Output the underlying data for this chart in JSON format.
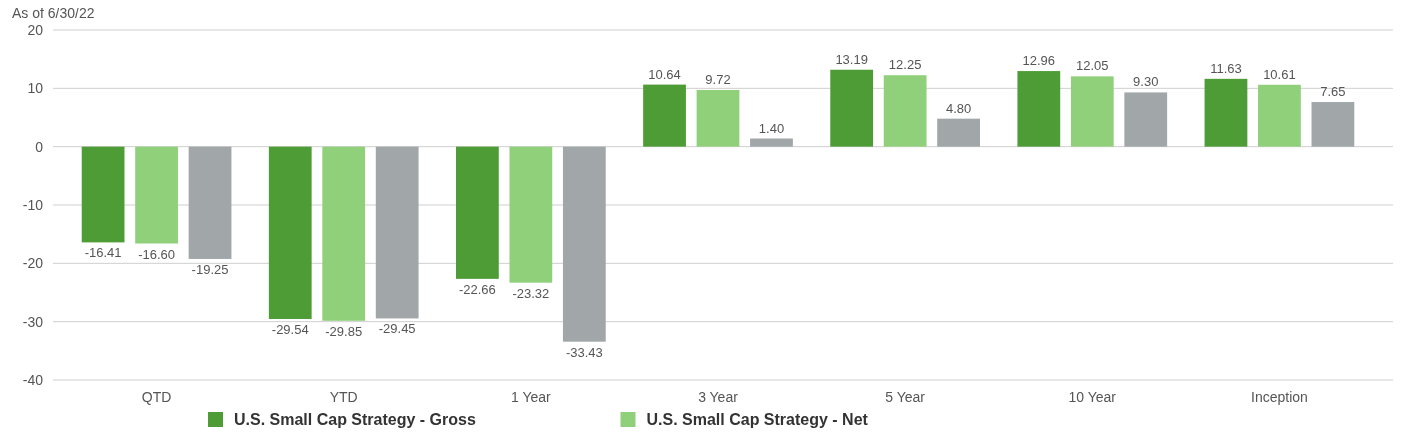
{
  "chart_data": {
    "type": "bar",
    "subtitle": "As of 6/30/22",
    "categories": [
      "QTD",
      "YTD",
      "1 Year",
      "3 Year",
      "5 Year",
      "10 Year",
      "Inception"
    ],
    "series": [
      {
        "name": "U.S. Small Cap Strategy - Gross",
        "color": "#4e9c36",
        "values": [
          -16.41,
          -29.54,
          -22.66,
          10.64,
          13.19,
          12.96,
          11.63
        ],
        "value_labels": [
          "-16.41",
          "-29.54",
          "-22.66",
          "10.64",
          "13.19",
          "12.96",
          "11.63"
        ]
      },
      {
        "name": "U.S. Small Cap Strategy - Net",
        "color": "#91d07b",
        "values": [
          -16.6,
          -29.85,
          -23.32,
          9.72,
          12.25,
          12.05,
          10.61
        ],
        "value_labels": [
          "-16.60",
          "-29.85",
          "-23.32",
          "9.72",
          "12.25",
          "12.05",
          "10.61"
        ]
      },
      {
        "color": "#a1a6a8",
        "values": [
          -19.25,
          -29.45,
          -33.43,
          1.4,
          4.8,
          9.3,
          7.65
        ],
        "value_labels": [
          "-19.25",
          "-29.45",
          "-33.43",
          "1.40",
          "4.80",
          "9.30",
          "7.65"
        ]
      }
    ],
    "ylim": [
      -40,
      20
    ],
    "yticks": [
      -40,
      -30,
      -20,
      -10,
      0,
      10,
      20
    ],
    "grid": "y",
    "legend": "bottom"
  }
}
